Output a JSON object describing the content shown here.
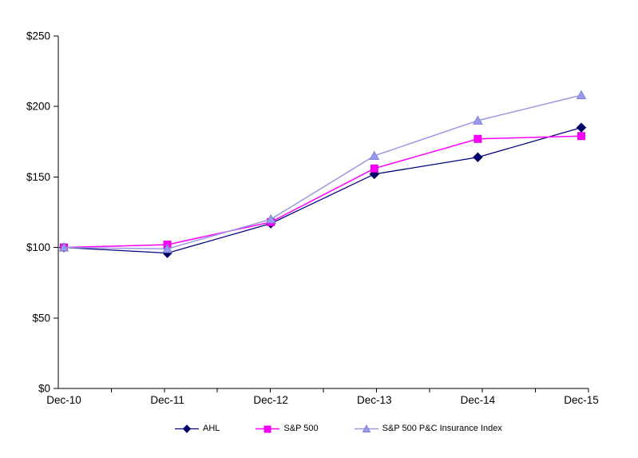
{
  "chart_data": {
    "type": "line",
    "title": "",
    "categories": [
      "Dec-10",
      "Dec-11",
      "Dec-12",
      "Dec-13",
      "Dec-14",
      "Dec-15"
    ],
    "series": [
      {
        "name": "AHL",
        "marker": "diamond",
        "color": "#000080",
        "marker_color": "#000066",
        "marker_stroke": "#000066",
        "line_width": 1.25,
        "values": [
          100,
          96,
          117,
          152,
          164,
          185
        ]
      },
      {
        "name": "S&P 500",
        "marker": "square",
        "color": "#FF00FF",
        "marker_color": "#FF00FF",
        "marker_stroke": "#E000E0",
        "line_width": 1.5,
        "values": [
          100,
          102,
          118,
          156,
          177,
          179
        ]
      },
      {
        "name": "S&P 500 P&C Insurance Index",
        "marker": "triangle",
        "color": "#9999E0",
        "marker_color": "#9999EE",
        "marker_stroke": "#8484D6",
        "line_width": 1.5,
        "values": [
          100,
          99,
          120,
          165,
          190,
          208
        ]
      }
    ],
    "y_axis": {
      "min": 0,
      "max": 250,
      "step": 50,
      "tick_labels": [
        "$0",
        "$50",
        "$100",
        "$150",
        "$200",
        "$250"
      ]
    },
    "x_axis": {
      "tick_labels": [
        "Dec-10",
        "Dec-11",
        "Dec-12",
        "Dec-13",
        "Dec-14",
        "Dec-15"
      ]
    },
    "grid": false,
    "legend_position": "bottom",
    "axis_color": "#000000",
    "background": "#ffffff"
  }
}
